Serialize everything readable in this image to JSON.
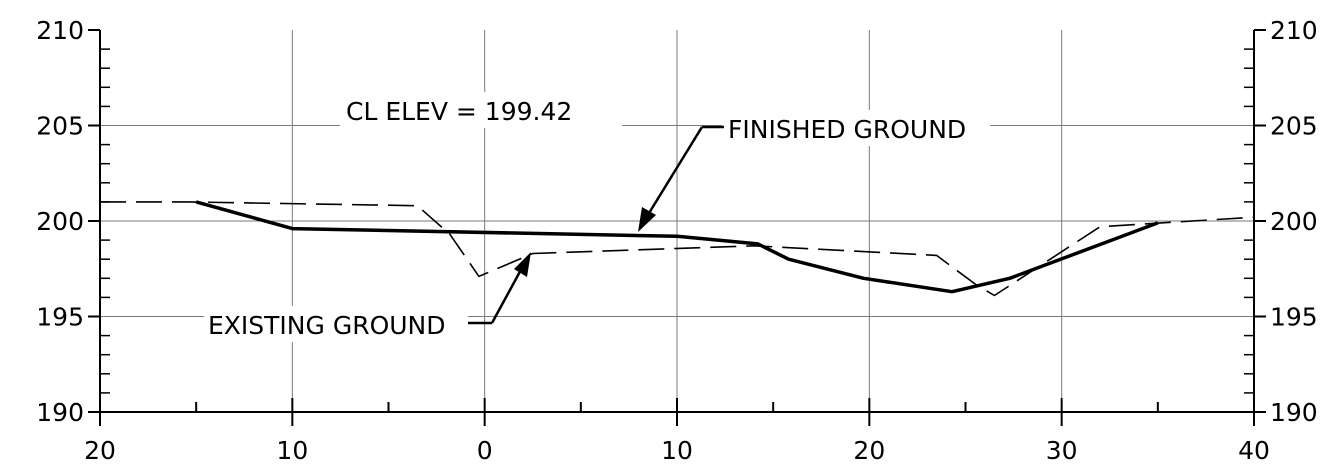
{
  "chart_data": {
    "type": "line",
    "title": "",
    "xlabel": "",
    "ylabel": "",
    "x_tick_labels": [
      "20",
      "10",
      "0",
      "10",
      "20",
      "30",
      "40"
    ],
    "x_tick_values": [
      -20,
      -10,
      0,
      10,
      20,
      30,
      40
    ],
    "y_tick_values": [
      190,
      195,
      200,
      205,
      210
    ],
    "y_tick_labels": [
      "190",
      "195",
      "200",
      "205",
      "210"
    ],
    "xlim": [
      -20,
      40
    ],
    "ylim": [
      190,
      210
    ],
    "grid": true,
    "series": [
      {
        "key": "finished",
        "style": "solid",
        "x": [
          -15,
          -10,
          10,
          14.2,
          15.8,
          19.7,
          24.3,
          27.3,
          35
        ],
        "y": [
          201.0,
          199.6,
          199.2,
          198.8,
          198.0,
          197.0,
          196.3,
          197.0,
          199.9
        ]
      },
      {
        "key": "existing",
        "style": "dashed",
        "x": [
          -20,
          -15.5,
          -3.5,
          -1.8,
          -0.3,
          2.5,
          14,
          23.5,
          25.5,
          26.5,
          32,
          40
        ],
        "y": [
          201.0,
          201.0,
          200.8,
          199.3,
          197.1,
          198.3,
          198.7,
          198.2,
          196.7,
          196.1,
          199.7,
          200.2
        ]
      }
    ],
    "annotations": {
      "cl_elev": "CL ELEV = 199.42",
      "finished_ground": "FINISHED GROUND",
      "existing_ground": "EXISTING GROUND"
    }
  }
}
